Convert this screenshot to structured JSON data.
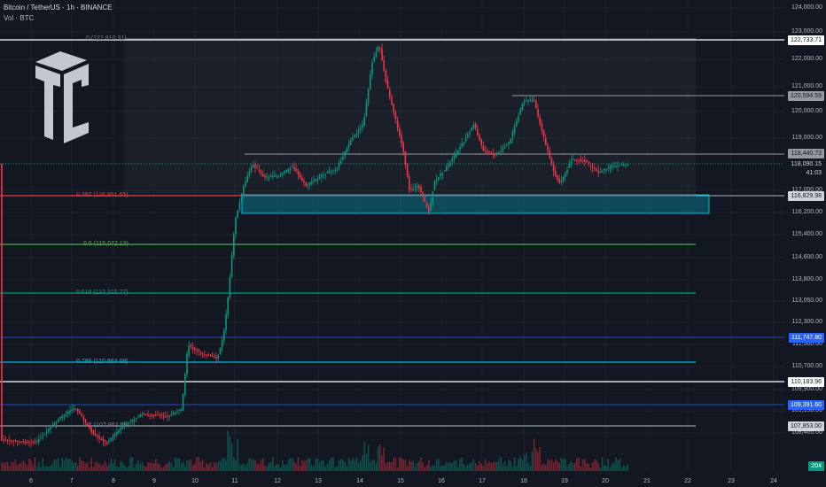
{
  "header": {
    "title": "Bitcoin / TetherUS · 1h · BINANCE",
    "volume_label": "Vol · BTC"
  },
  "logo": {
    "icon": "tc-logo-icon"
  },
  "price_axis": {
    "ticks": [
      "124,000.00",
      "123,000.00",
      "122,000.00",
      "121,000.00",
      "120,000.00",
      "119,000.00",
      "117,000.00",
      "116,200.00",
      "115,400.00",
      "114,600.00",
      "113,800.00",
      "113,050.00",
      "112,300.00",
      "111,500.00",
      "110,700.00",
      "109,900.00",
      "109,150.00",
      "108,400.00"
    ]
  },
  "price_tags": {
    "ath": "122,733.71",
    "r1": "120,594.59",
    "r2": "118,440.73",
    "current": "118,090.15",
    "countdown": "41:03",
    "support": "116,829.98",
    "l1": "111,747.80",
    "l2": "110,183.96",
    "l3": "109,391.60",
    "l4": "107,853.00",
    "volume": "204"
  },
  "fib_levels": [
    {
      "label": "0 (122,810.31)",
      "color": "#787b86"
    },
    {
      "label": "0.382 (116,851.65)",
      "color": "#f23645"
    },
    {
      "label": "0.5 (115,072.13)",
      "color": "#4caf50"
    },
    {
      "label": "0.618 (113,315.77)",
      "color": "#089981"
    },
    {
      "label": "0.786 (110,864.08)",
      "color": "#00bcd4"
    },
    {
      "label": "1 (107,862.75)",
      "color": "#787b86"
    }
  ],
  "dates": [
    "6",
    "7",
    "8",
    "9",
    "10",
    "11",
    "12",
    "13",
    "14",
    "15",
    "16",
    "17",
    "18",
    "19",
    "20",
    "21",
    "22",
    "23",
    "24"
  ],
  "colors": {
    "up": "#089981",
    "down": "#f23645",
    "bg": "#131722"
  }
}
